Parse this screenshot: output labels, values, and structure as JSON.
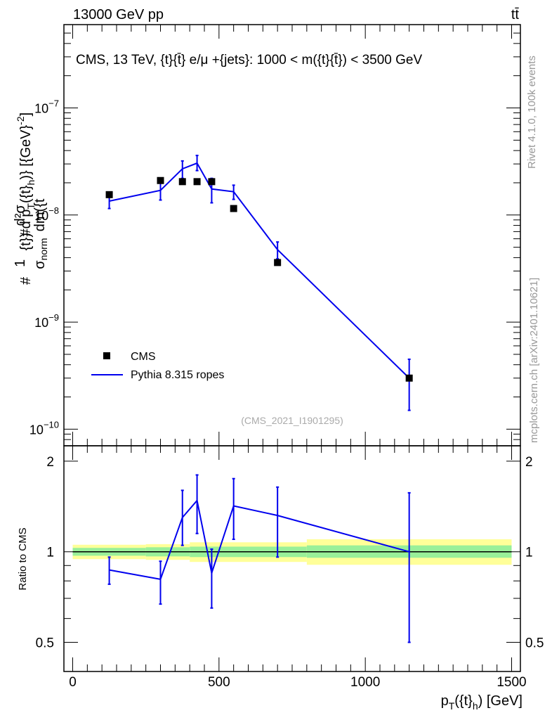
{
  "header": {
    "left": "13000 GeV pp",
    "right": "tt̄"
  },
  "side_labels": {
    "rivet": "Rivet 4.1.0,  100k events",
    "mcplots": "mcplots.cern.ch [arXiv:2401.10621]"
  },
  "chart_data": {
    "type": "scatter",
    "title": "CMS, 13 TeV, {t}{t̄} e/μ +{jets}: 1000 < m({t}{t̄}) < 3500 GeV",
    "analysis_id": "(CMS_2021_I1901295)",
    "ylabel": "#1/σnorm #d²σ/dm({t}{t̄}) d pT({t}h) [{GeV}⁻²]",
    "ylabel_parts": {
      "hash1": "#",
      "one": "1",
      "sigma": "σ",
      "norm": "norm",
      "hash2": "#",
      "d2sigma": "d²σ",
      "dm": "dm({t",
      "rest": "{t}) d p",
      "T": "T",
      "t_open": "({t}",
      "h": "h",
      "units": ")} [{GeV}",
      "exp": "-2",
      "close": "]"
    },
    "xlabel": "pT({t}h) [GeV]",
    "xlabel_parts": {
      "p": "p",
      "T": "T",
      "mid": "({t}",
      "h": "h",
      "end": ") [GeV]"
    },
    "xlim": [
      -30,
      1530
    ],
    "ylim": [
      7e-11,
      6e-07
    ],
    "yscale": "log",
    "y_ticks": [
      {
        "value": 1e-10,
        "base": "10",
        "exp": "−10"
      },
      {
        "value": 1e-09,
        "base": "10",
        "exp": "−9"
      },
      {
        "value": 1e-08,
        "base": "10",
        "exp": "−8"
      },
      {
        "value": 1e-07,
        "base": "10",
        "exp": "−7"
      }
    ],
    "x_ticks": [
      {
        "value": 0,
        "label": "0"
      },
      {
        "value": 500,
        "label": "500"
      },
      {
        "value": 1000,
        "label": "1000"
      },
      {
        "value": 1500,
        "label": "1500"
      }
    ],
    "series": [
      {
        "name": "CMS",
        "style": "markers",
        "color": "#000000",
        "x": [
          125,
          300,
          375,
          425,
          475,
          550,
          700,
          1150
        ],
        "y": [
          1.55e-08,
          2.1e-08,
          2.05e-08,
          2.05e-08,
          2.05e-08,
          1.15e-08,
          3.6e-09,
          3e-10
        ]
      },
      {
        "name": "Pythia 8.315 ropes",
        "style": "line",
        "color": "#0000ee",
        "x": [
          125,
          300,
          375,
          425,
          475,
          550,
          700,
          1150
        ],
        "y": [
          1.35e-08,
          1.7e-08,
          2.7e-08,
          3.05e-08,
          1.75e-08,
          1.65e-08,
          4.75e-09,
          3e-10
        ],
        "err_low": [
          1.15e-08,
          1.38e-08,
          2.2e-08,
          2.6e-08,
          1.3e-08,
          1.4e-08,
          3.9e-09,
          1.5e-10
        ],
        "err_high": [
          1.55e-08,
          2e-08,
          3.2e-08,
          3.6e-08,
          2.2e-08,
          1.9e-08,
          5.6e-09,
          4.5e-10
        ]
      }
    ],
    "legend": {
      "placement": "bottom-left",
      "entries": [
        "CMS",
        "Pythia 8.315 ropes"
      ]
    },
    "ratio": {
      "ylabel": "Ratio to CMS",
      "ylim": [
        0.4,
        2.25
      ],
      "yscale": "log",
      "y_ticks": [
        {
          "value": 0.5,
          "label": "0.5"
        },
        {
          "value": 1,
          "label": "1"
        },
        {
          "value": 2,
          "label": "2"
        }
      ],
      "bands": [
        {
          "x0": 0,
          "x1": 250,
          "stat": [
            0.97,
            1.03
          ],
          "total": [
            0.945,
            1.055
          ]
        },
        {
          "x0": 250,
          "x1": 400,
          "stat": [
            0.965,
            1.035
          ],
          "total": [
            0.94,
            1.06
          ]
        },
        {
          "x0": 400,
          "x1": 800,
          "stat": [
            0.96,
            1.04
          ],
          "total": [
            0.925,
            1.075
          ]
        },
        {
          "x0": 800,
          "x1": 1500,
          "stat": [
            0.955,
            1.05
          ],
          "total": [
            0.905,
            1.1
          ]
        }
      ],
      "series": {
        "name": "Pythia 8.315 ropes",
        "color": "#0000ee",
        "x": [
          125,
          300,
          375,
          425,
          475,
          550,
          700,
          1150
        ],
        "y": [
          0.87,
          0.81,
          1.3,
          1.48,
          0.85,
          1.42,
          1.32,
          1.0
        ],
        "err_low": [
          0.78,
          0.67,
          1.05,
          1.15,
          0.65,
          1.1,
          0.96,
          0.5
        ],
        "err_high": [
          0.96,
          0.93,
          1.6,
          1.8,
          1.02,
          1.75,
          1.64,
          1.57
        ]
      }
    }
  }
}
